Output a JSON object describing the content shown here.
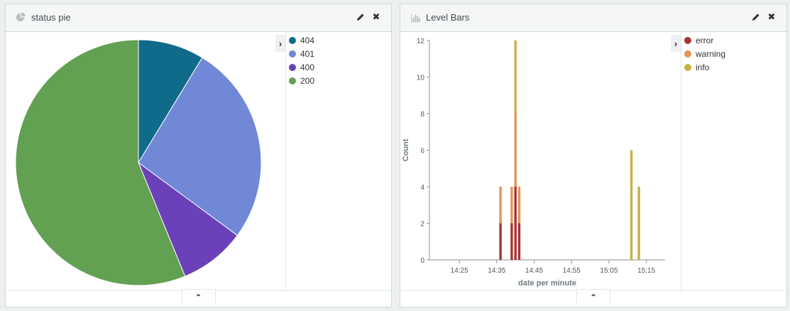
{
  "left_panel": {
    "title": "status pie",
    "legend_toggle": "›",
    "collapse_label": "⌃",
    "colors": {
      "404": "#0f6b89",
      "401": "#7088d6",
      "400": "#6a41b8",
      "200": "#62a052"
    },
    "chart_data": {
      "type": "pie",
      "title": "",
      "slices": [
        {
          "label": "404",
          "value": 8.7,
          "color": "#0f6b89"
        },
        {
          "label": "401",
          "value": 26.4,
          "color": "#7088d6"
        },
        {
          "label": "400",
          "value": 8.7,
          "color": "#6a41b8"
        },
        {
          "label": "200",
          "value": 56.2,
          "color": "#62a052"
        }
      ],
      "legend": [
        "404",
        "401",
        "400",
        "200"
      ],
      "legend_position": "right"
    }
  },
  "right_panel": {
    "title": "Level Bars",
    "legend_toggle": "›",
    "collapse_label": "⌃",
    "chart_data": {
      "type": "bar",
      "stacked": true,
      "title": "",
      "xlabel": "date per minute",
      "ylabel": "Count",
      "x_ticks": [
        "14:25",
        "14:35",
        "14:45",
        "14:55",
        "15:05",
        "15:15"
      ],
      "x_range": [
        "14:17",
        "15:20"
      ],
      "ylim": [
        0,
        12
      ],
      "y_ticks": [
        "0",
        "2",
        "4",
        "6",
        "8",
        "10",
        "12"
      ],
      "categories": [
        "14:36",
        "14:39",
        "14:40",
        "14:41",
        "15:11",
        "15:13"
      ],
      "series": [
        {
          "name": "error",
          "color": "#a83235",
          "values": [
            2,
            2,
            4,
            2,
            0,
            0
          ]
        },
        {
          "name": "warning",
          "color": "#e0955a",
          "values": [
            2,
            2,
            4,
            2,
            0,
            0
          ]
        },
        {
          "name": "info",
          "color": "#c9b043",
          "values": [
            0,
            0,
            4,
            0,
            6,
            4
          ]
        }
      ],
      "legend_position": "right"
    }
  }
}
